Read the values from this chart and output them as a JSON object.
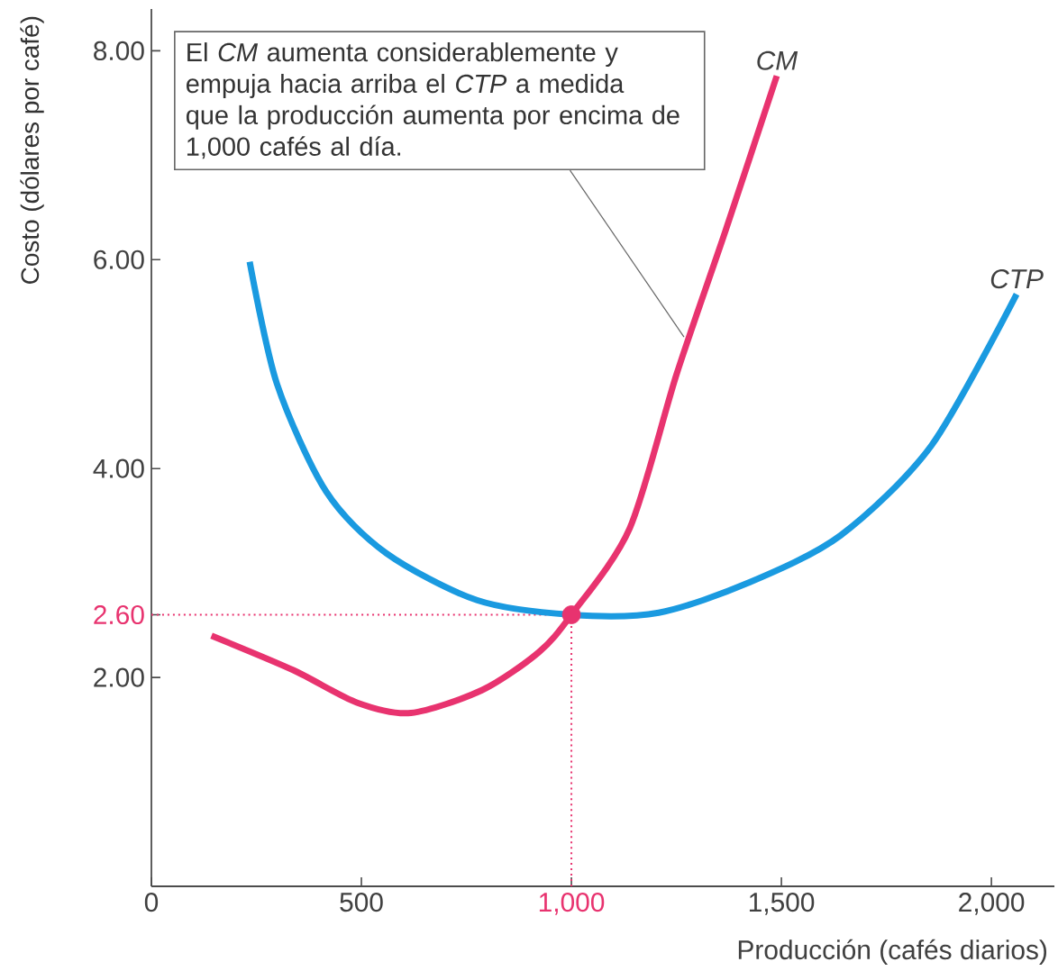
{
  "chart_data": {
    "type": "line",
    "xlabel": "Producción (cafés diarios)",
    "ylabel": "Costo (dólares por café)",
    "xlim": [
      0,
      2150
    ],
    "ylim": [
      0,
      8.4
    ],
    "xticks": [
      {
        "value": 0,
        "label": "0"
      },
      {
        "value": 500,
        "label": "500"
      },
      {
        "value": 1000,
        "label": "1,000"
      },
      {
        "value": 1500,
        "label": "1,500"
      },
      {
        "value": 2000,
        "label": "2,000"
      }
    ],
    "yticks": [
      {
        "value": 2,
        "label": "2.00"
      },
      {
        "value": 2.6,
        "label": "2.60"
      },
      {
        "value": 4,
        "label": "4.00"
      },
      {
        "value": 6,
        "label": "6.00"
      },
      {
        "value": 8,
        "label": "8.00"
      }
    ],
    "series": [
      {
        "name": "CM",
        "color": "#e8336f",
        "x": [
          143,
          338,
          489,
          618,
          788,
          922,
          1000,
          1139,
          1251,
          1368,
          1489
        ],
        "values": [
          2.4,
          2.07,
          1.76,
          1.66,
          1.88,
          2.24,
          2.6,
          3.43,
          4.91,
          6.29,
          7.76
        ]
      },
      {
        "name": "CTP",
        "color": "#1a9ae0",
        "x": [
          234,
          299,
          416,
          559,
          775,
          1000,
          1208,
          1424,
          1641,
          1857,
          2060
        ],
        "values": [
          5.98,
          4.81,
          3.78,
          3.19,
          2.74,
          2.6,
          2.62,
          2.91,
          3.36,
          4.22,
          5.67
        ]
      },
      {
        "type": "scatter",
        "marker": "circle",
        "color": "#e8336f",
        "x": [
          1000
        ],
        "values": [
          2.6
        ]
      }
    ],
    "ref_lines": [
      {
        "axis": "x",
        "value": 1000,
        "color": "#e8336f",
        "line_style": "dotted"
      },
      {
        "axis": "y",
        "value": 2.6,
        "color": "#e8336f",
        "line_style": "dotted"
      }
    ],
    "annotations": [
      {
        "text": "El *CM* aumenta considerablemente y empuja hacia arriba el *CTP* a medida que la producción aumenta por encima de 1,000 cafés al día.",
        "x": 1268,
        "y": 5.26
      }
    ]
  }
}
